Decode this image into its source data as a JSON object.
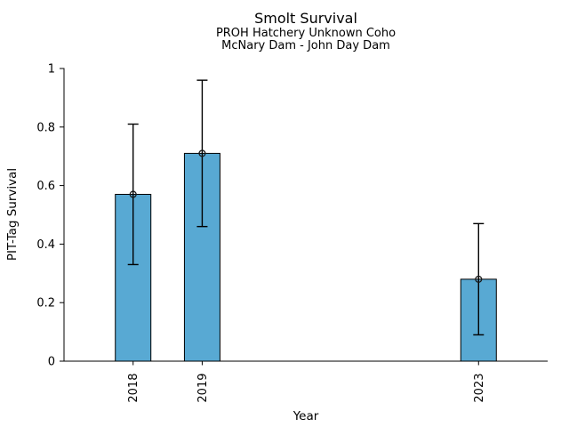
{
  "chart_data": {
    "type": "bar",
    "title": "Smolt Survival",
    "subtitle": [
      "PROH Hatchery Unknown Coho",
      "McNary Dam - John Day Dam"
    ],
    "xlabel": "Year",
    "ylabel": "PIT-Tag Survival",
    "categories": [
      "2018",
      "2019",
      "2023"
    ],
    "x": [
      2018,
      2019,
      2023
    ],
    "values": [
      0.57,
      0.71,
      0.28
    ],
    "error_low": [
      0.33,
      0.46,
      0.09
    ],
    "error_high": [
      0.81,
      0.96,
      0.47
    ],
    "marker": "open-circle",
    "bar_color": "#58A9D3",
    "bar_edge_color": "#000000",
    "axis_color": "#000000",
    "yticks": [
      0,
      0.2,
      0.4,
      0.6,
      0.8,
      1
    ],
    "ytick_labels": [
      "0",
      "0.2",
      "0.4",
      "0.6",
      "0.8",
      "1"
    ],
    "ylim": [
      0,
      1
    ],
    "xlim": [
      2017,
      2024
    ],
    "grid": false,
    "legend": null
  }
}
